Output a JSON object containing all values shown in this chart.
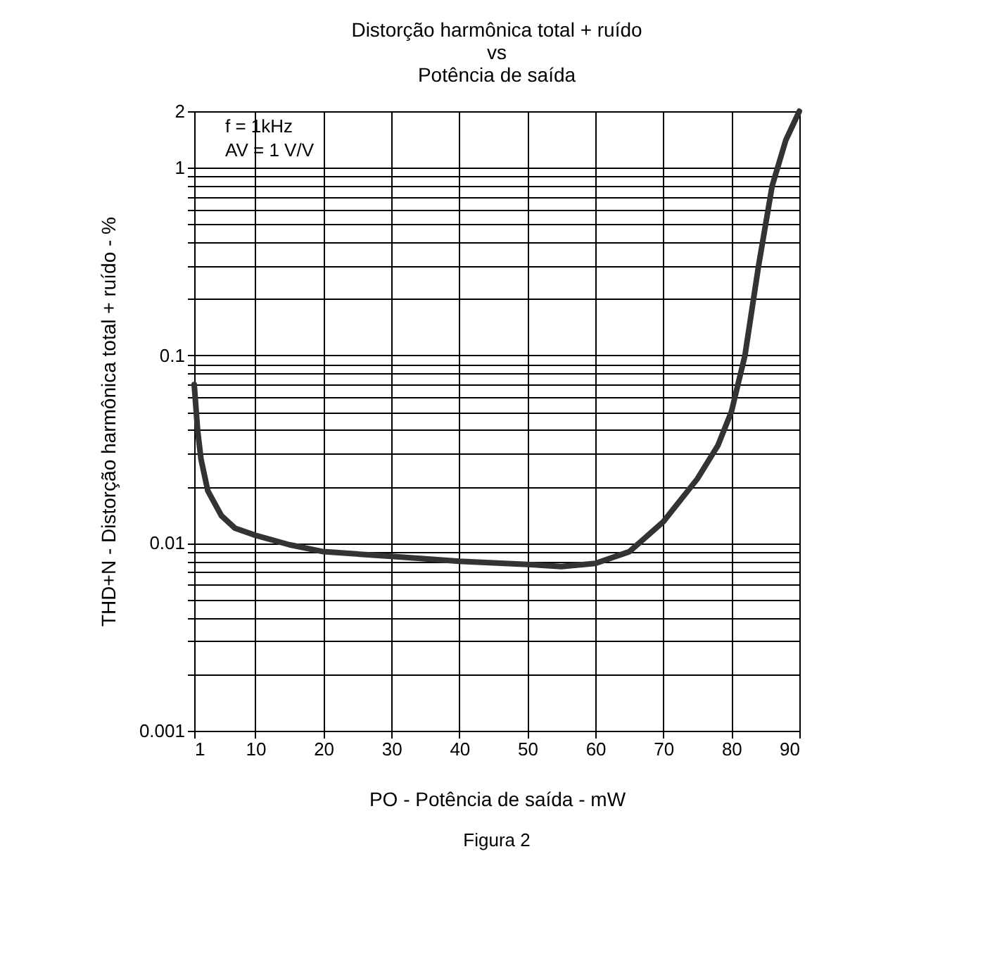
{
  "chart_data": {
    "type": "line",
    "title": "Distorção harmônica total + ruído\nvs\nPotência de saída",
    "xlabel": "PO - Potência de saída - mW",
    "ylabel": "THD+N - Distorção harmônica total + ruído - %",
    "x": [
      1,
      1.5,
      2,
      3,
      5,
      7,
      10,
      15,
      20,
      30,
      40,
      50,
      55,
      60,
      65,
      70,
      75,
      78,
      80,
      82,
      84,
      86,
      88,
      90
    ],
    "series": [
      {
        "color": "#333333",
        "values": [
          0.07,
          0.04,
          0.028,
          0.019,
          0.014,
          0.012,
          0.011,
          0.0098,
          0.009,
          0.0085,
          0.008,
          0.0077,
          0.0075,
          0.0078,
          0.009,
          0.013,
          0.022,
          0.033,
          0.05,
          0.1,
          0.3,
          0.8,
          1.4,
          2
        ]
      }
    ],
    "xlim": [
      1,
      90
    ],
    "xticks": [
      1,
      10,
      20,
      30,
      40,
      50,
      60,
      70,
      80,
      90
    ],
    "ylim": [
      0.001,
      2
    ],
    "log": "y",
    "yticks": [
      0.001,
      {
        "value": 0.002,
        "label": null
      },
      {
        "value": 0.003,
        "label": null
      },
      {
        "value": 0.004,
        "label": null
      },
      {
        "value": 0.005,
        "label": null
      },
      {
        "value": 0.006,
        "label": null
      },
      {
        "value": 0.007,
        "label": null
      },
      {
        "value": 0.008,
        "label": null
      },
      {
        "value": 0.009,
        "label": null
      },
      0.01,
      {
        "value": 0.02,
        "label": null
      },
      {
        "value": 0.03,
        "label": null
      },
      {
        "value": 0.04,
        "label": null
      },
      {
        "value": 0.05,
        "label": null
      },
      {
        "value": 0.06,
        "label": null
      },
      {
        "value": 0.07,
        "label": null
      },
      {
        "value": 0.08,
        "label": null
      },
      {
        "value": 0.09,
        "label": null
      },
      0.1,
      {
        "value": 0.2,
        "label": null
      },
      {
        "value": 0.3,
        "label": null
      },
      {
        "value": 0.4,
        "label": null
      },
      {
        "value": 0.5,
        "label": null
      },
      {
        "value": 0.6,
        "label": null
      },
      {
        "value": 0.7,
        "label": null
      },
      {
        "value": 0.8,
        "label": null
      },
      {
        "value": 0.9,
        "label": null
      },
      1,
      2
    ],
    "grid": true,
    "marker": "none",
    "line_style": "solid",
    "annotations": [
      "f = 1kHz",
      "AV = 1 V/V",
      "Figura 2"
    ]
  }
}
